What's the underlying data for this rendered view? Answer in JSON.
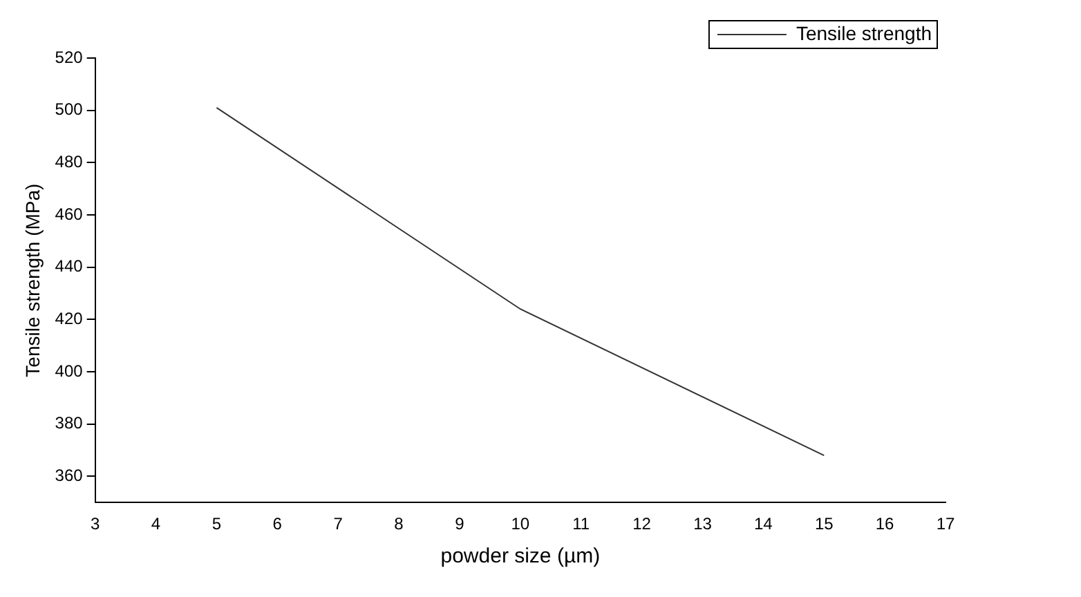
{
  "chart_data": {
    "type": "line",
    "xlabel": "powder size (µm)",
    "ylabel": "Tensile strength (MPa)",
    "x": [
      5,
      10,
      15
    ],
    "series": [
      {
        "name": "Tensile strength",
        "color": "#333333",
        "values": [
          501,
          424,
          368
        ]
      }
    ],
    "xlim": [
      3,
      17
    ],
    "xticks": [
      3,
      4,
      5,
      6,
      7,
      8,
      9,
      10,
      11,
      12,
      13,
      14,
      15,
      16,
      17
    ],
    "ylim": [
      350,
      520
    ],
    "yticks": [
      360,
      380,
      400,
      420,
      440,
      460,
      480,
      500,
      520
    ],
    "grid": false,
    "legend": "top right",
    "marker": "none",
    "line_style": "solid"
  }
}
